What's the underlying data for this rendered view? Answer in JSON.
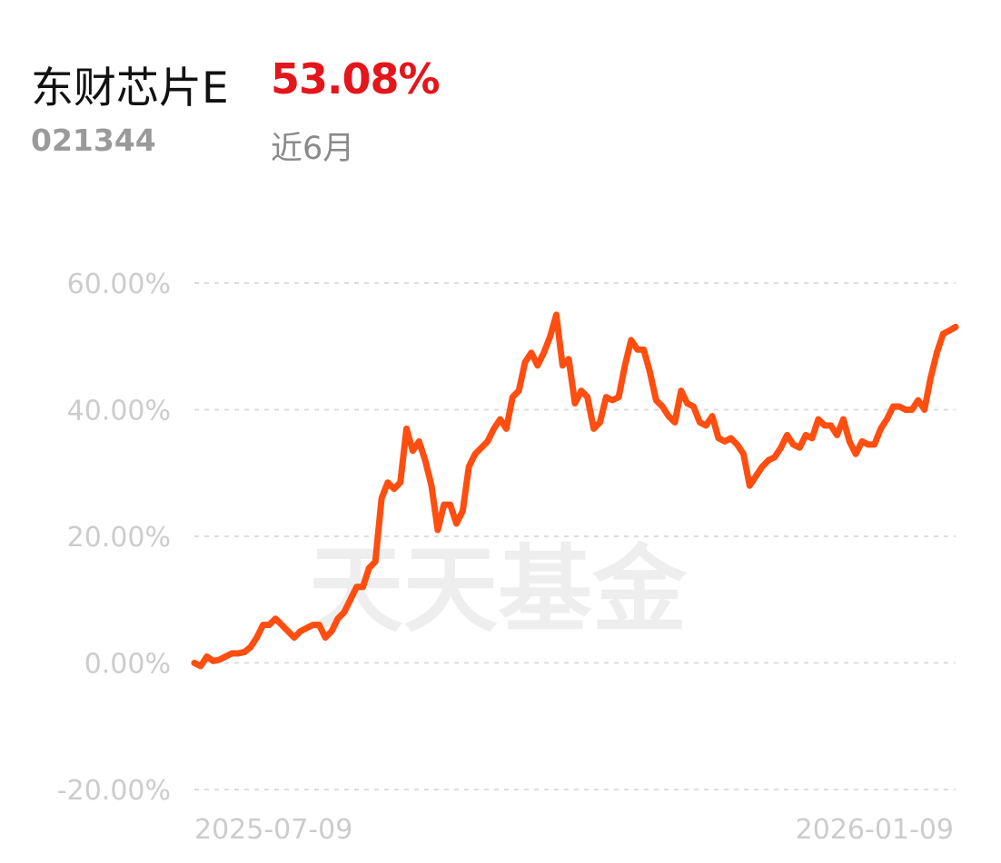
{
  "header": {
    "fund_name": "东财芯片E",
    "return_value": "53.08%",
    "fund_code": "021344",
    "period_label": "近6月"
  },
  "watermark": "天天基金",
  "colors": {
    "line": "#ff4e10",
    "return_text": "#e4161b",
    "grid": "#dddddd",
    "tick_text": "#cccccc",
    "watermark": "#eeeeee"
  },
  "chart_data": {
    "type": "line",
    "title": "",
    "xlabel": "",
    "ylabel": "",
    "ylim": [
      -20,
      60
    ],
    "yticks": [
      60,
      40,
      20,
      0,
      -20
    ],
    "ytick_labels": [
      "60.00%",
      "40.00%",
      "20.00%",
      "0.00%",
      "-20.00%"
    ],
    "xlim": [
      "2025-07-09",
      "2026-01-09"
    ],
    "xtick_labels": [
      "2025-07-09",
      "2026-01-09"
    ],
    "grid": true,
    "legend": "none",
    "series": [
      {
        "values": [
          0.0,
          -0.5,
          1.0,
          0.3,
          0.5,
          1.0,
          1.5,
          1.5,
          1.7,
          2.5,
          4.0,
          6.0,
          6.0,
          7.0,
          6.0,
          5.0,
          4.0,
          5.0,
          5.5,
          6.0,
          6.0,
          4.0,
          5.0,
          7.0,
          8.0,
          10.0,
          12.0,
          12.0,
          15.0,
          16.0,
          26.0,
          28.5,
          27.5,
          28.5,
          37.0,
          33.5,
          35.0,
          32.0,
          28.0,
          21.0,
          25.0,
          25.0,
          22.0,
          24.0,
          31.0,
          33.0,
          34.0,
          35.0,
          37.0,
          38.5,
          37.0,
          42.0,
          43.0,
          47.5,
          49.0,
          47.0,
          49.0,
          51.5,
          55.0,
          47.0,
          48.0,
          41.0,
          43.0,
          42.0,
          37.0,
          38.0,
          42.0,
          41.5,
          42.0,
          47.0,
          51.0,
          49.5,
          49.5,
          46.0,
          41.5,
          40.5,
          39.0,
          38.0,
          43.0,
          41.0,
          40.5,
          38.0,
          37.5,
          39.0,
          35.5,
          35.0,
          35.5,
          34.5,
          33.0,
          28.0,
          29.5,
          31.0,
          32.0,
          32.5,
          34.0,
          36.0,
          34.5,
          34.0,
          36.0,
          35.5,
          38.5,
          37.5,
          37.5,
          36.0,
          38.5,
          35.0,
          33.0,
          35.0,
          34.5,
          34.5,
          37.0,
          38.5,
          40.5,
          40.5,
          40.0,
          40.0,
          41.5,
          40.0,
          45.0,
          49.0,
          52.0,
          52.5,
          53.08
        ]
      }
    ]
  }
}
